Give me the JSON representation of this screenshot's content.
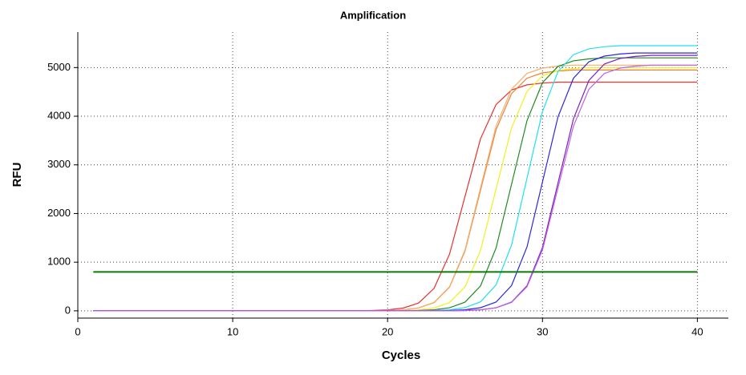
{
  "chart_data": {
    "type": "line",
    "title": "Amplification",
    "xlabel": "Cycles",
    "ylabel": "RFU",
    "x": [
      1,
      2,
      3,
      4,
      5,
      6,
      7,
      8,
      9,
      10,
      11,
      12,
      13,
      14,
      15,
      16,
      17,
      18,
      19,
      20,
      21,
      22,
      23,
      24,
      25,
      26,
      27,
      28,
      29,
      30,
      31,
      32,
      33,
      34,
      35,
      36,
      37,
      38,
      39,
      40
    ],
    "xlim": [
      0,
      42
    ],
    "ylim": [
      -150,
      5730
    ],
    "xticks": [
      0,
      10,
      20,
      30,
      40
    ],
    "yticks": [
      0,
      1000,
      2000,
      3000,
      4000,
      5000
    ],
    "grid": true,
    "threshold": {
      "value": 800,
      "color": "#0a7a0a"
    },
    "series": [
      {
        "color": "#e8302a",
        "values": [
          0,
          0,
          0,
          0,
          0,
          0,
          0,
          0,
          0,
          0,
          0,
          0,
          0,
          0,
          0,
          0,
          0,
          0,
          6,
          19,
          56,
          160,
          461,
          1166,
          2350,
          3534,
          4239,
          4540,
          4644,
          4681,
          4700,
          4700,
          4700,
          4700,
          4700,
          4700,
          4700,
          4700,
          4700,
          4700
        ]
      },
      {
        "color": "#f08030",
        "values": [
          0,
          0,
          0,
          0,
          0,
          0,
          0,
          0,
          0,
          0,
          0,
          0,
          0,
          0,
          0,
          0,
          0,
          0,
          0,
          6,
          20,
          59,
          168,
          485,
          1228,
          2475,
          3722,
          4465,
          4782,
          4891,
          4930,
          4950,
          4950,
          4950,
          4950,
          4950,
          4950,
          4950,
          4950,
          4950
        ]
      },
      {
        "color": "#f0b070",
        "values": [
          0,
          0,
          0,
          0,
          0,
          0,
          0,
          0,
          0,
          0,
          0,
          0,
          0,
          0,
          0,
          0,
          0,
          0,
          0,
          7,
          20,
          61,
          172,
          495,
          1252,
          2525,
          3798,
          4555,
          4878,
          4989,
          5030,
          5050,
          5050,
          5050,
          5050,
          5050,
          5050,
          5050,
          5050,
          5050
        ]
      },
      {
        "color": "#f0f020",
        "values": [
          0,
          0,
          0,
          0,
          0,
          0,
          0,
          0,
          0,
          0,
          0,
          0,
          0,
          0,
          0,
          0,
          0,
          0,
          0,
          0,
          7,
          20,
          60,
          170,
          490,
          1240,
          2500,
          3760,
          4510,
          4830,
          4940,
          4980,
          5000,
          5000,
          5000,
          5000,
          5000,
          5000,
          5000,
          5000
        ]
      },
      {
        "color": "#208a20",
        "values": [
          0,
          0,
          0,
          0,
          0,
          0,
          0,
          0,
          0,
          0,
          0,
          0,
          0,
          0,
          0,
          0,
          0,
          0,
          0,
          0,
          0,
          7,
          21,
          62,
          177,
          510,
          1290,
          2600,
          3910,
          4690,
          5023,
          5138,
          5179,
          5200,
          5200,
          5200,
          5200,
          5200,
          5200,
          5200
        ]
      },
      {
        "color": "#20e0f0",
        "values": [
          0,
          0,
          0,
          0,
          0,
          0,
          0,
          0,
          0,
          0,
          0,
          0,
          0,
          0,
          0,
          0,
          0,
          0,
          0,
          0,
          0,
          0,
          7,
          22,
          65,
          185,
          534,
          1352,
          2725,
          4098,
          4916,
          5265,
          5385,
          5428,
          5450,
          5450,
          5450,
          5450,
          5450,
          5450
        ]
      },
      {
        "color": "#2828e0",
        "values": [
          0,
          0,
          0,
          0,
          0,
          0,
          0,
          0,
          0,
          0,
          0,
          0,
          0,
          0,
          0,
          0,
          0,
          0,
          0,
          0,
          0,
          0,
          0,
          7,
          21,
          64,
          180,
          519,
          1314,
          2650,
          3986,
          4781,
          5120,
          5236,
          5279,
          5300,
          5300,
          5300,
          5300,
          5300
        ]
      },
      {
        "color": "#7a20c0",
        "values": [
          0,
          0,
          0,
          0,
          0,
          0,
          0,
          0,
          0,
          0,
          0,
          0,
          0,
          0,
          0,
          0,
          0,
          0,
          0,
          0,
          0,
          0,
          0,
          0,
          7,
          21,
          63,
          179,
          515,
          1302,
          2625,
          3948,
          4736,
          5072,
          5187,
          5229,
          5250,
          5250,
          5250,
          5250
        ]
      },
      {
        "color": "#c060e0",
        "values": [
          0,
          0,
          0,
          0,
          0,
          0,
          0,
          0,
          0,
          0,
          0,
          0,
          0,
          0,
          0,
          0,
          0,
          0,
          0,
          0,
          0,
          0,
          0,
          0,
          7,
          20,
          61,
          172,
          495,
          1252,
          2525,
          3798,
          4555,
          4878,
          4989,
          5030,
          5050,
          5050,
          5050,
          5050
        ]
      }
    ]
  }
}
